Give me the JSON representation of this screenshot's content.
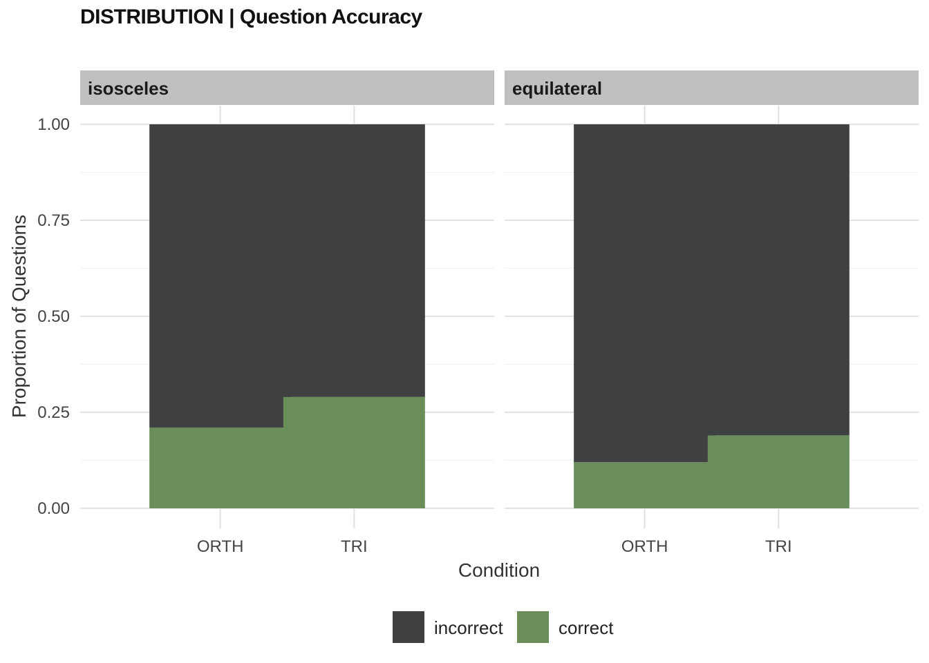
{
  "chart_data": {
    "type": "bar",
    "stacked": true,
    "title": "DISTRIBUTION | Question Accuracy",
    "xlabel": "Condition",
    "ylabel": "Proportion of Questions",
    "ylim": [
      0,
      1
    ],
    "yticks": [
      "0.00",
      "0.25",
      "0.50",
      "0.75",
      "1.00"
    ],
    "categories": [
      "ORTH",
      "TRI"
    ],
    "legend": {
      "position": "bottom",
      "entries": [
        {
          "name": "incorrect",
          "color": "#3f4042"
        },
        {
          "name": "correct",
          "color": "#6a8e59"
        }
      ]
    },
    "grid": true,
    "facets": [
      {
        "label": "isosceles",
        "series": [
          {
            "name": "correct",
            "values": [
              0.21,
              0.29
            ]
          },
          {
            "name": "incorrect",
            "values": [
              0.79,
              0.71
            ]
          }
        ]
      },
      {
        "label": "equilateral",
        "series": [
          {
            "name": "correct",
            "values": [
              0.12,
              0.19
            ]
          },
          {
            "name": "incorrect",
            "values": [
              0.88,
              0.81
            ]
          }
        ]
      }
    ]
  }
}
